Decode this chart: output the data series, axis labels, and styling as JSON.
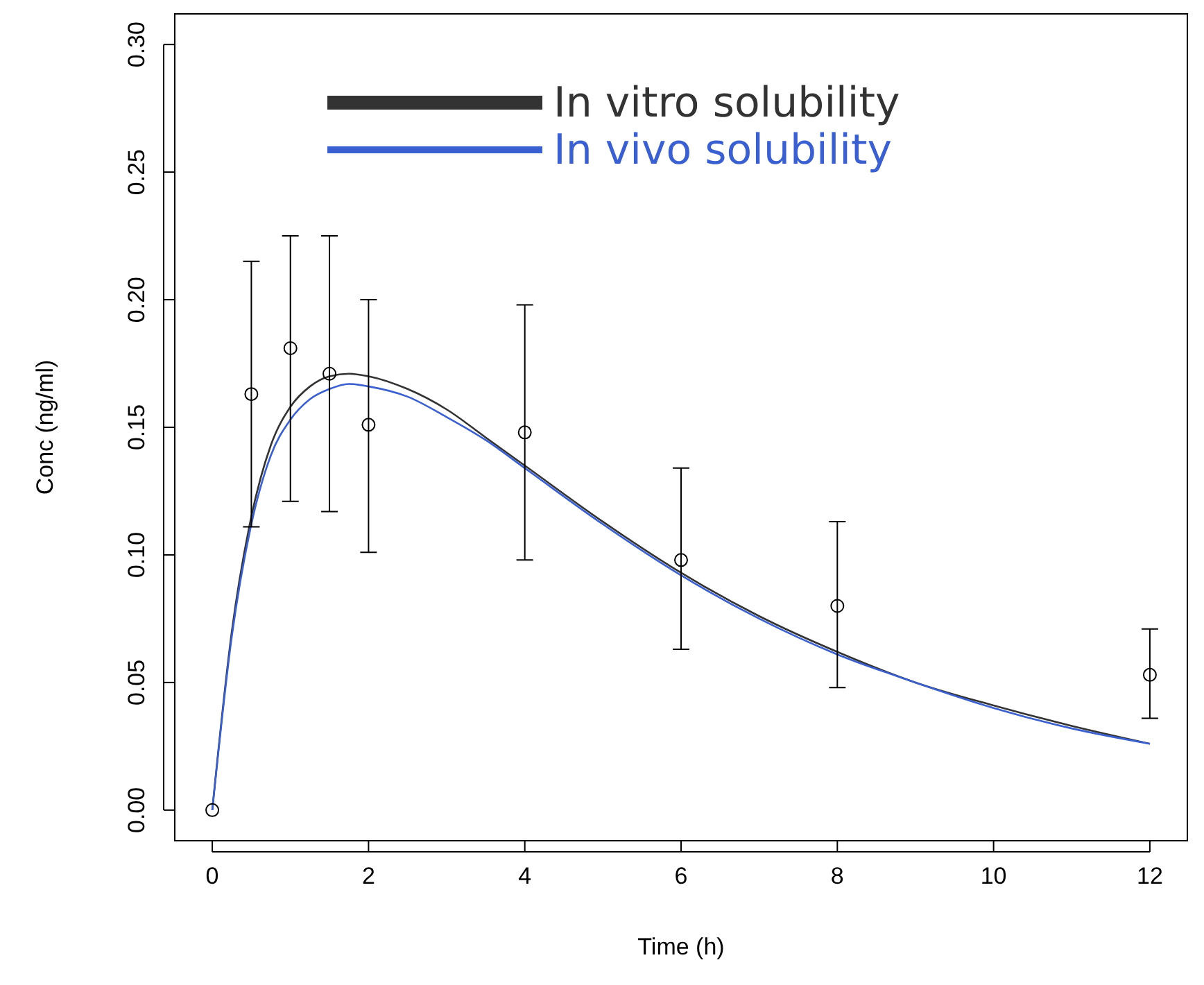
{
  "chart_data": {
    "type": "line",
    "xlabel": "Time (h)",
    "ylabel": "Conc (ng/ml)",
    "xlim": [
      -0.48,
      12.48
    ],
    "ylim": [
      -0.012,
      0.312
    ],
    "xticks": [
      0,
      2,
      4,
      6,
      8,
      10,
      12
    ],
    "yticks": [
      {
        "value": 0,
        "label": "0.00"
      },
      {
        "value": 0.05,
        "label": "0.05"
      },
      {
        "value": 0.1,
        "label": "0.10"
      },
      {
        "value": 0.15,
        "label": "0.15"
      },
      {
        "value": 0.2,
        "label": "0.20"
      },
      {
        "value": 0.25,
        "label": "0.25"
      },
      {
        "value": 0.3,
        "label": "0.30"
      }
    ],
    "grid": false,
    "legend": "top",
    "line_style": "solid",
    "series": [
      {
        "name": "In vitro solubility",
        "color": "#333333",
        "marker": "none",
        "x": [
          0,
          0.25,
          0.5,
          0.75,
          1,
          1.25,
          1.5,
          1.75,
          2,
          2.5,
          3,
          3.5,
          4,
          5,
          6,
          7,
          8,
          9,
          10,
          11,
          12
        ],
        "values": [
          0,
          0.07,
          0.115,
          0.143,
          0.158,
          0.166,
          0.17,
          0.171,
          0.17,
          0.165,
          0.157,
          0.146,
          0.135,
          0.113,
          0.093,
          0.076,
          0.062,
          0.05,
          0.041,
          0.033,
          0.026
        ]
      },
      {
        "name": "In vivo solubility",
        "color": "#3a5fd0",
        "marker": "none",
        "x": [
          0,
          0.25,
          0.5,
          0.75,
          1,
          1.25,
          1.5,
          1.75,
          2,
          2.5,
          3,
          3.5,
          4,
          5,
          6,
          7,
          8,
          9,
          10,
          11,
          12
        ],
        "values": [
          0,
          0.068,
          0.112,
          0.139,
          0.153,
          0.161,
          0.165,
          0.167,
          0.166,
          0.162,
          0.154,
          0.145,
          0.134,
          0.112,
          0.092,
          0.075,
          0.061,
          0.05,
          0.04,
          0.032,
          0.026
        ]
      },
      {
        "type": "scatter",
        "color": "#000000",
        "marker": "circle",
        "x": [
          0,
          0.5,
          1,
          1.5,
          2,
          4,
          6,
          8,
          12
        ],
        "values": [
          0,
          0.163,
          0.181,
          0.171,
          0.151,
          0.148,
          0.098,
          0.08,
          0.053
        ],
        "errors": [
          null,
          [
            0.111,
            0.215
          ],
          [
            0.121,
            0.225
          ],
          [
            0.117,
            0.225
          ],
          [
            0.101,
            0.2
          ],
          [
            0.098,
            0.198
          ],
          [
            0.063,
            0.134
          ],
          [
            0.048,
            0.113
          ],
          [
            0.036,
            0.071
          ]
        ]
      }
    ]
  }
}
